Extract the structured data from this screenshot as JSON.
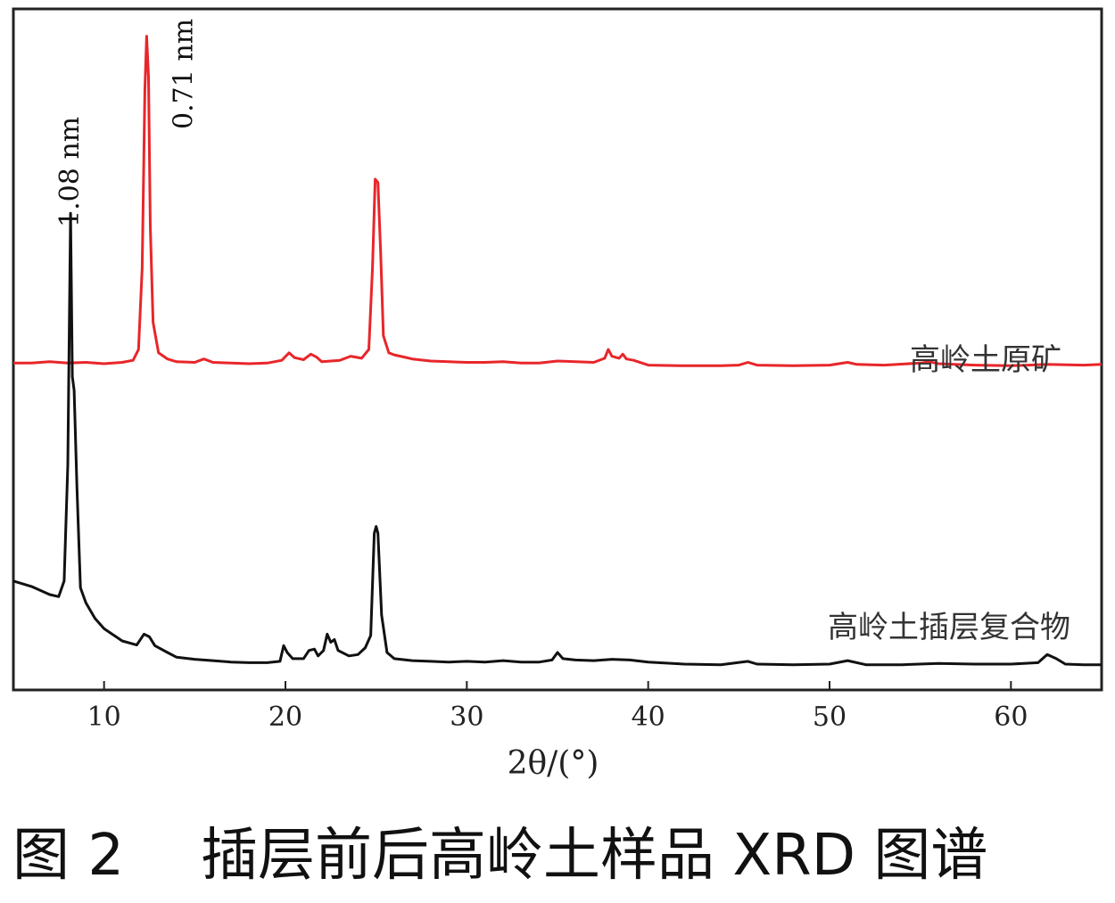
{
  "caption": {
    "figure_no": "图 2",
    "text": "插层前后高岭土样品 XRD 图谱"
  },
  "colors": {
    "series_raw": "#e8262a",
    "series_intercalated": "#111111",
    "axis": "#222222"
  },
  "chart_data": {
    "type": "line",
    "title": "",
    "xlabel": "2θ/(°)",
    "ylabel": "",
    "xlim": [
      5,
      65
    ],
    "ylim": [
      0,
      1
    ],
    "x_ticks": [
      10,
      20,
      30,
      40,
      50,
      60
    ],
    "y_ticks_shown": false,
    "grid": false,
    "legend": "inline labels next to curves",
    "annotations": [
      {
        "text": "1.08 nm",
        "x": 8.2,
        "orientation": "vertical"
      },
      {
        "text": "0.71 nm",
        "x": 12.4,
        "orientation": "vertical"
      }
    ],
    "series": [
      {
        "name": "高岭土原矿",
        "color": "#e8262a",
        "points": [
          [
            5.0,
            0.48
          ],
          [
            6.0,
            0.48
          ],
          [
            7.0,
            0.482
          ],
          [
            8.0,
            0.48
          ],
          [
            9.0,
            0.481
          ],
          [
            10.0,
            0.479
          ],
          [
            11.0,
            0.481
          ],
          [
            11.6,
            0.484
          ],
          [
            11.9,
            0.5
          ],
          [
            12.1,
            0.62
          ],
          [
            12.25,
            0.88
          ],
          [
            12.35,
            0.96
          ],
          [
            12.45,
            0.9
          ],
          [
            12.55,
            0.68
          ],
          [
            12.7,
            0.54
          ],
          [
            13.0,
            0.495
          ],
          [
            13.5,
            0.486
          ],
          [
            14.0,
            0.482
          ],
          [
            15.0,
            0.481
          ],
          [
            15.5,
            0.486
          ],
          [
            16.0,
            0.481
          ],
          [
            17.0,
            0.48
          ],
          [
            18.0,
            0.479
          ],
          [
            19.0,
            0.48
          ],
          [
            19.8,
            0.484
          ],
          [
            20.2,
            0.495
          ],
          [
            20.5,
            0.488
          ],
          [
            21.0,
            0.485
          ],
          [
            21.4,
            0.493
          ],
          [
            21.7,
            0.489
          ],
          [
            22.0,
            0.482
          ],
          [
            23.0,
            0.484
          ],
          [
            23.6,
            0.49
          ],
          [
            24.2,
            0.487
          ],
          [
            24.6,
            0.5
          ],
          [
            24.8,
            0.62
          ],
          [
            24.95,
            0.75
          ],
          [
            25.1,
            0.745
          ],
          [
            25.25,
            0.64
          ],
          [
            25.4,
            0.52
          ],
          [
            25.7,
            0.495
          ],
          [
            26.0,
            0.492
          ],
          [
            26.5,
            0.489
          ],
          [
            27.0,
            0.486
          ],
          [
            28.0,
            0.483
          ],
          [
            29.0,
            0.482
          ],
          [
            30.0,
            0.481
          ],
          [
            31.0,
            0.481
          ],
          [
            32.0,
            0.482
          ],
          [
            33.0,
            0.48
          ],
          [
            34.0,
            0.48
          ],
          [
            35.0,
            0.483
          ],
          [
            36.0,
            0.482
          ],
          [
            37.0,
            0.481
          ],
          [
            37.6,
            0.487
          ],
          [
            37.8,
            0.5
          ],
          [
            38.0,
            0.49
          ],
          [
            38.4,
            0.487
          ],
          [
            38.6,
            0.493
          ],
          [
            38.8,
            0.486
          ],
          [
            39.2,
            0.484
          ],
          [
            40.0,
            0.477
          ],
          [
            42.0,
            0.476
          ],
          [
            44.0,
            0.476
          ],
          [
            45.0,
            0.477
          ],
          [
            45.5,
            0.481
          ],
          [
            46.0,
            0.477
          ],
          [
            48.0,
            0.476
          ],
          [
            50.0,
            0.477
          ],
          [
            51.0,
            0.481
          ],
          [
            51.5,
            0.478
          ],
          [
            53.0,
            0.477
          ],
          [
            55.0,
            0.48
          ],
          [
            55.5,
            0.482
          ],
          [
            56.0,
            0.479
          ],
          [
            58.0,
            0.477
          ],
          [
            60.0,
            0.476
          ],
          [
            62.0,
            0.478
          ],
          [
            64.0,
            0.477
          ],
          [
            65.0,
            0.478
          ]
        ]
      },
      {
        "name": "高岭土插层复合物",
        "color": "#111111",
        "points": [
          [
            5.0,
            0.16
          ],
          [
            6.0,
            0.152
          ],
          [
            7.0,
            0.14
          ],
          [
            7.5,
            0.137
          ],
          [
            7.8,
            0.16
          ],
          [
            8.0,
            0.33
          ],
          [
            8.15,
            0.7
          ],
          [
            8.25,
            0.46
          ],
          [
            8.35,
            0.44
          ],
          [
            8.5,
            0.3
          ],
          [
            8.7,
            0.15
          ],
          [
            9.0,
            0.128
          ],
          [
            9.5,
            0.105
          ],
          [
            10.0,
            0.09
          ],
          [
            11.0,
            0.072
          ],
          [
            11.8,
            0.066
          ],
          [
            12.2,
            0.082
          ],
          [
            12.5,
            0.078
          ],
          [
            12.8,
            0.065
          ],
          [
            13.5,
            0.055
          ],
          [
            14.0,
            0.048
          ],
          [
            15.0,
            0.045
          ],
          [
            16.0,
            0.043
          ],
          [
            17.0,
            0.041
          ],
          [
            18.0,
            0.04
          ],
          [
            19.0,
            0.04
          ],
          [
            19.7,
            0.042
          ],
          [
            19.9,
            0.065
          ],
          [
            20.1,
            0.055
          ],
          [
            20.4,
            0.046
          ],
          [
            21.0,
            0.046
          ],
          [
            21.3,
            0.058
          ],
          [
            21.6,
            0.06
          ],
          [
            21.8,
            0.05
          ],
          [
            22.1,
            0.058
          ],
          [
            22.3,
            0.082
          ],
          [
            22.5,
            0.07
          ],
          [
            22.7,
            0.074
          ],
          [
            22.9,
            0.058
          ],
          [
            23.5,
            0.05
          ],
          [
            24.0,
            0.052
          ],
          [
            24.4,
            0.062
          ],
          [
            24.7,
            0.08
          ],
          [
            24.9,
            0.23
          ],
          [
            25.0,
            0.24
          ],
          [
            25.1,
            0.23
          ],
          [
            25.3,
            0.11
          ],
          [
            25.6,
            0.055
          ],
          [
            26.0,
            0.046
          ],
          [
            27.0,
            0.043
          ],
          [
            28.0,
            0.042
          ],
          [
            29.0,
            0.041
          ],
          [
            30.0,
            0.042
          ],
          [
            31.0,
            0.041
          ],
          [
            32.0,
            0.043
          ],
          [
            33.0,
            0.041
          ],
          [
            34.0,
            0.041
          ],
          [
            34.7,
            0.044
          ],
          [
            35.0,
            0.055
          ],
          [
            35.3,
            0.046
          ],
          [
            36.0,
            0.044
          ],
          [
            37.0,
            0.043
          ],
          [
            38.0,
            0.045
          ],
          [
            39.0,
            0.044
          ],
          [
            40.0,
            0.041
          ],
          [
            42.0,
            0.038
          ],
          [
            44.0,
            0.037
          ],
          [
            45.5,
            0.042
          ],
          [
            46.0,
            0.038
          ],
          [
            48.0,
            0.037
          ],
          [
            50.0,
            0.038
          ],
          [
            51.0,
            0.043
          ],
          [
            52.0,
            0.037
          ],
          [
            54.0,
            0.037
          ],
          [
            56.0,
            0.039
          ],
          [
            58.0,
            0.038
          ],
          [
            60.0,
            0.038
          ],
          [
            61.5,
            0.04
          ],
          [
            62.0,
            0.052
          ],
          [
            62.5,
            0.046
          ],
          [
            63.0,
            0.038
          ],
          [
            64.0,
            0.037
          ],
          [
            65.0,
            0.037
          ]
        ]
      }
    ]
  }
}
